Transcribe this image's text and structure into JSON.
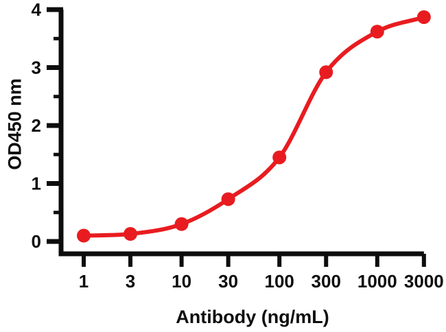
{
  "chart_data": {
    "type": "line",
    "title": "",
    "xlabel": "Antibody (ng/mL)",
    "ylabel": "OD450 nm",
    "x_scale": "log",
    "xlim": [
      1,
      3000
    ],
    "ylim": [
      0,
      4
    ],
    "grid": false,
    "legend": "none",
    "x": [
      1,
      3,
      10,
      30,
      100,
      300,
      1000,
      3000
    ],
    "y": [
      0.1,
      0.13,
      0.3,
      0.73,
      1.45,
      2.92,
      3.62,
      3.87
    ],
    "x_tick_labels": [
      "1",
      "3",
      "10",
      "30",
      "100",
      "300",
      "1000",
      "3000"
    ],
    "y_ticks": [
      0,
      1,
      2,
      3,
      4
    ],
    "y_tick_labels": [
      "0",
      "1",
      "2",
      "3",
      "4"
    ],
    "y_minor_ticks": [
      0.5,
      1.5,
      2.5,
      3.5
    ],
    "series_name": "antibody-binding-curve",
    "series_color": "#e81c20",
    "axis_color": "#0d0d0d",
    "marker": "circle"
  }
}
